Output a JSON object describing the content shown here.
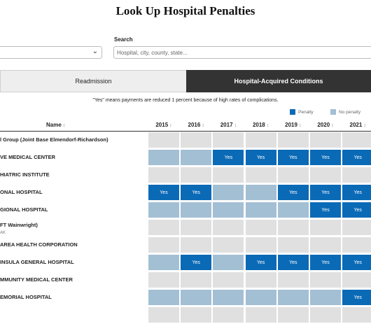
{
  "page": {
    "title": "Look Up Hospital Penalties"
  },
  "filters": {
    "search_label": "Search",
    "search_placeholder": "Hospital, city, county, state..."
  },
  "tabs": [
    {
      "label": "Readmission",
      "active": false
    },
    {
      "label": "Hospital-Acquired Conditions",
      "active": true
    }
  ],
  "note": "\"Yes\" means payments are reduced 1 percent because of high rates of complications.",
  "legend": [
    {
      "label": "Penalty",
      "color": "#0b6ab6"
    },
    {
      "label": "No penalty",
      "color": "#a3bfd4"
    }
  ],
  "table": {
    "name_header": "Name",
    "sort_icon": "↕",
    "years": [
      "2015",
      "2016",
      "2017",
      "2018",
      "2019",
      "2020",
      "2021"
    ],
    "yes_label": "Yes",
    "colors": {
      "yes": "#0b6ab6",
      "no": "#a3bfd4",
      "none": "#e0e0e0"
    },
    "rows": [
      {
        "name": "l Group (Joint Base Elmendorf-Richardson)",
        "sub": "",
        "cells": [
          "none",
          "none",
          "none",
          "none",
          "none",
          "none",
          "none"
        ]
      },
      {
        "name": "VE MEDICAL CENTER",
        "sub": "",
        "cells": [
          "no",
          "no",
          "yes",
          "yes",
          "yes",
          "yes",
          "yes"
        ]
      },
      {
        "name": "HIATRIC INSTITUTE",
        "sub": "",
        "cells": [
          "none",
          "none",
          "none",
          "none",
          "none",
          "none",
          "none"
        ]
      },
      {
        "name": "ONAL HOSPITAL",
        "sub": "",
        "cells": [
          "yes",
          "yes",
          "no",
          "no",
          "yes",
          "yes",
          "yes"
        ]
      },
      {
        "name": "GIONAL HOSPITAL",
        "sub": "",
        "cells": [
          "no",
          "no",
          "no",
          "no",
          "no",
          "yes",
          "yes"
        ]
      },
      {
        "name": "FT Wainwright)",
        "sub": "AK",
        "cells": [
          "none",
          "none",
          "none",
          "none",
          "none",
          "none",
          "none"
        ]
      },
      {
        "name": "AREA HEALTH CORPORATION",
        "sub": "",
        "cells": [
          "none",
          "none",
          "none",
          "none",
          "none",
          "none",
          "none"
        ]
      },
      {
        "name": "INSULA GENERAL HOSPITAL",
        "sub": "",
        "cells": [
          "no",
          "yes",
          "no",
          "yes",
          "yes",
          "yes",
          "yes"
        ]
      },
      {
        "name": "MMUNITY MEDICAL CENTER",
        "sub": "",
        "cells": [
          "none",
          "none",
          "none",
          "none",
          "none",
          "none",
          "none"
        ]
      },
      {
        "name": "EMORIAL HOSPITAL",
        "sub": "",
        "cells": [
          "no",
          "no",
          "no",
          "no",
          "no",
          "no",
          "yes"
        ]
      },
      {
        "name": "",
        "sub": "",
        "cells": [
          "none",
          "none",
          "none",
          "none",
          "none",
          "none",
          "none"
        ]
      }
    ]
  }
}
